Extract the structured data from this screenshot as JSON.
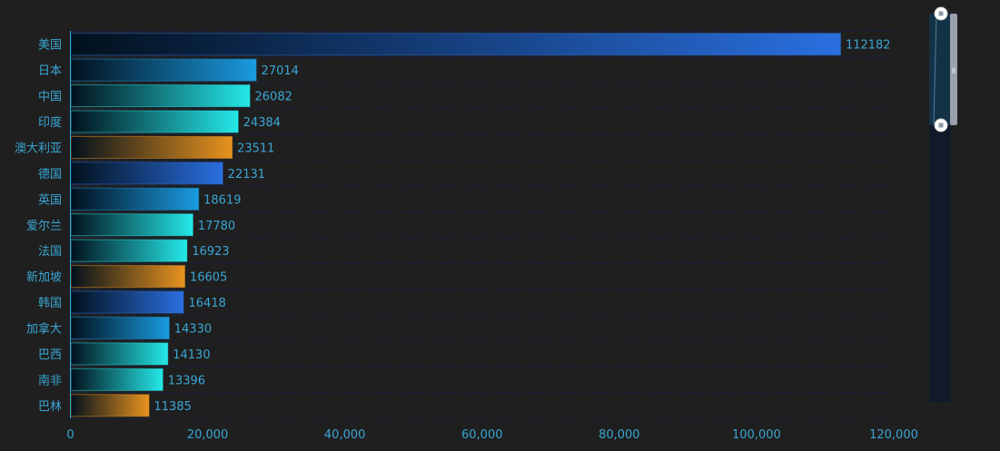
{
  "chart_data": {
    "type": "bar",
    "orientation": "horizontal",
    "categories": [
      "美国",
      "日本",
      "中国",
      "印度",
      "澳大利亚",
      "德国",
      "英国",
      "爱尔兰",
      "法国",
      "新加坡",
      "韩国",
      "加拿大",
      "巴西",
      "南非",
      "巴林"
    ],
    "values": [
      112182,
      27014,
      26082,
      24384,
      23511,
      22131,
      18619,
      17780,
      16923,
      16605,
      16418,
      14330,
      14130,
      13396,
      11385
    ],
    "xlim": [
      0,
      120000
    ],
    "xticks": [
      "0",
      "20,000",
      "40,000",
      "60,000",
      "80,000",
      "100,000",
      "120,000"
    ],
    "grid": true,
    "data_labels": true,
    "color_cycle": [
      "#2a6fe0",
      "#1a9be0",
      "#25e8e8",
      "#25e8e8",
      "#e8931e"
    ],
    "text_color": "#3aa6d4",
    "background": "#1f1f1f"
  },
  "data_zoom": {
    "orientation": "vertical",
    "range_percent": [
      0,
      29
    ]
  }
}
